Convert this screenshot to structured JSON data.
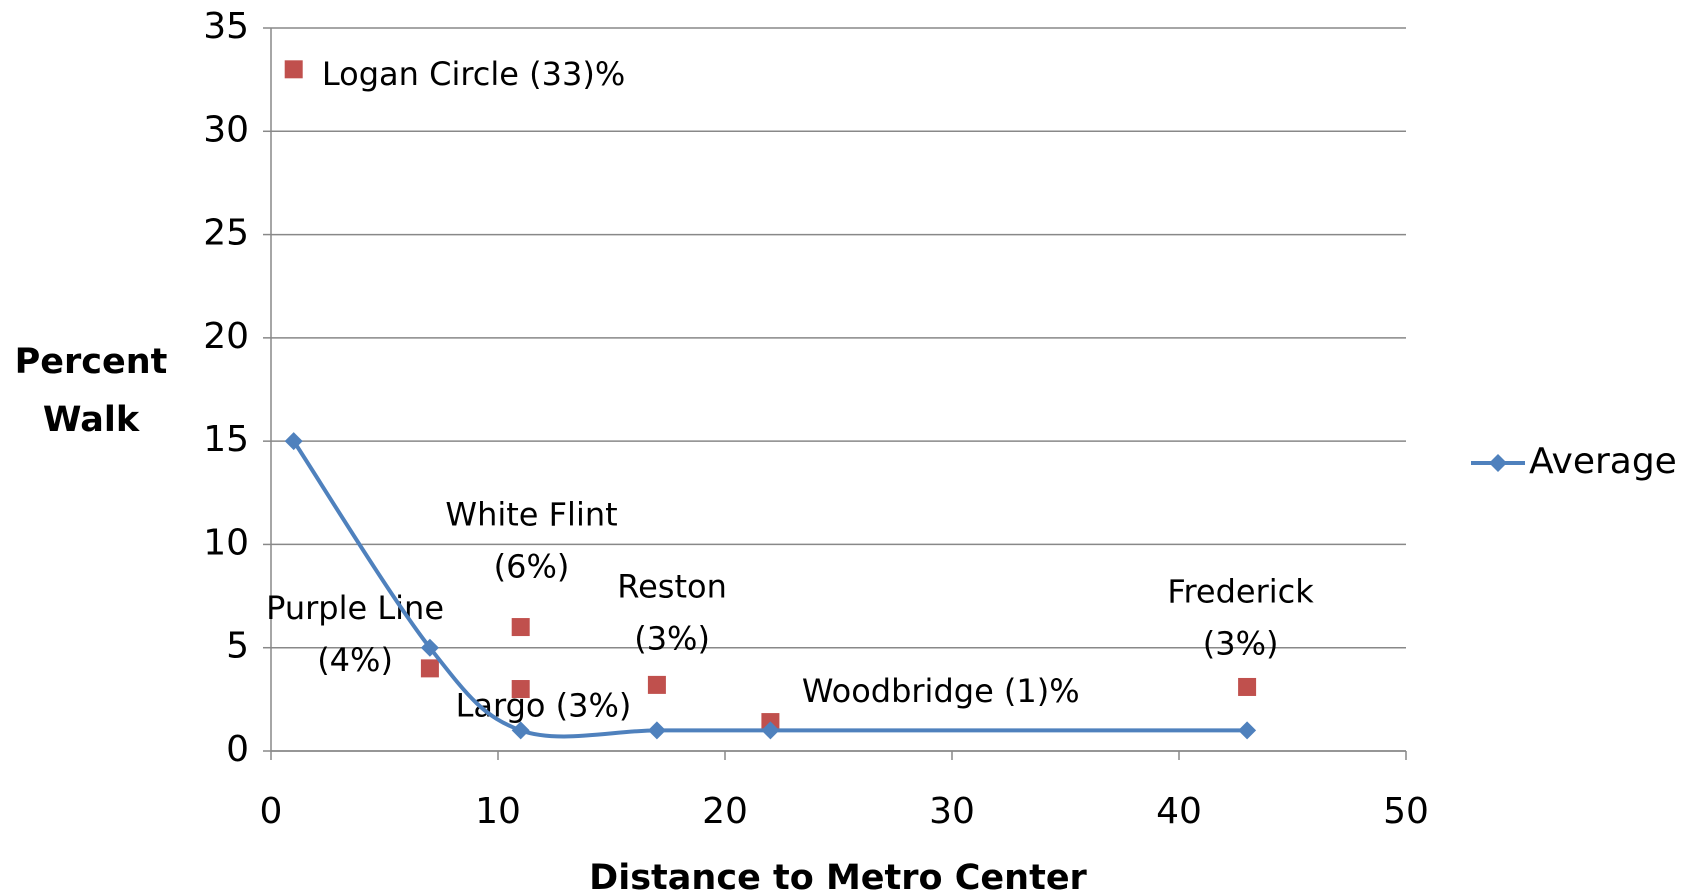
{
  "chart_data": {
    "type": "line",
    "x_label": "Distance to Metro Center",
    "y_label": [
      "Percent",
      "Walk"
    ],
    "xlim": [
      0,
      50
    ],
    "xticks": [
      0,
      10,
      20,
      30,
      40,
      50
    ],
    "ylim": [
      0,
      35
    ],
    "yticks": [
      0,
      5,
      10,
      15,
      20,
      25,
      30,
      35
    ],
    "grid": true,
    "legend": "right",
    "series": [
      {
        "name": "Average",
        "color": "#4f81bd",
        "x": [
          1,
          7,
          11,
          17,
          22,
          43
        ],
        "values": [
          15,
          5,
          1,
          1,
          1,
          1
        ]
      }
    ],
    "points": {
      "color": "#c0504d",
      "x": [
        1,
        7,
        11,
        11,
        17,
        22,
        43
      ],
      "values": [
        33,
        4,
        6,
        3,
        3.2,
        1.4,
        3.1
      ],
      "labels": [
        [
          "Logan Circle  (33)%"
        ],
        [
          "Purple Line",
          "(4%)"
        ],
        [
          "White Flint",
          "(6%)"
        ],
        [
          "Largo (3%)"
        ],
        [
          "Reston",
          "(3%)"
        ],
        [
          "Woodbridge (1)%"
        ],
        [
          "Frederick",
          "(3%)"
        ]
      ]
    }
  }
}
